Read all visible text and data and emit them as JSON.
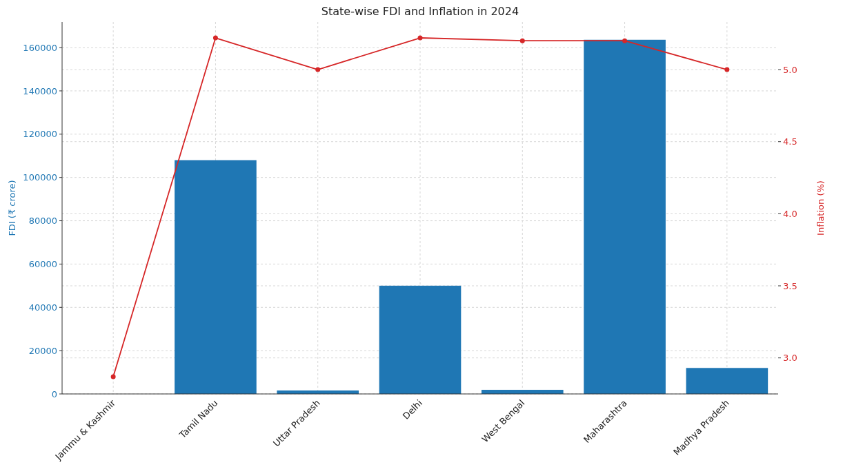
{
  "chart_data": {
    "type": "bar",
    "title": "State-wise FDI and Inflation in 2024",
    "categories": [
      "Jammu & Kashmir",
      "Tamil Nadu",
      "Uttar Pradesh",
      "Delhi",
      "West Bengal",
      "Maharashtra",
      "Madhya Pradesh"
    ],
    "series": [
      {
        "color": "#1f77b4",
        "values": [
          0,
          108000,
          1600,
          50000,
          1900,
          163600,
          12000
        ]
      },
      {
        "type": "line",
        "axis": "y2",
        "color": "#d62728",
        "values": [
          2.87,
          5.22,
          5.0,
          5.22,
          5.2,
          5.2,
          5.0
        ]
      }
    ],
    "ylabel": "FDI (₹ crore)",
    "y2label": "Inflation (%)",
    "ylim": [
      0,
      171800
    ],
    "yticks": [
      0,
      20000,
      40000,
      60000,
      80000,
      100000,
      120000,
      140000,
      160000
    ],
    "y2lim": [
      2.75,
      5.33
    ],
    "y2ticks": [
      {
        "value": 3,
        "label": "3.0"
      },
      3.5,
      {
        "value": 4,
        "label": "4.0"
      },
      4.5,
      {
        "value": 5,
        "label": "5.0"
      }
    ],
    "grid": true,
    "marker": "circle"
  }
}
